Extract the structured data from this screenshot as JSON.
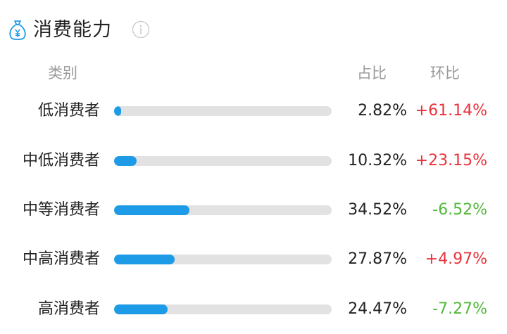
{
  "header": {
    "title": "消费能力",
    "icon": "money-bag-icon",
    "info_icon": "info-icon"
  },
  "columns": {
    "category": "类别",
    "share": "占比",
    "mom": "环比"
  },
  "colors": {
    "bar": "#1e9be6",
    "track": "#e2e2e2",
    "up": "#e8333d",
    "down": "#52b83a"
  },
  "rows": [
    {
      "label": "低消费者",
      "share": "2.82%",
      "share_value": 0.0282,
      "mom": "+61.14%",
      "trend": "up"
    },
    {
      "label": "中低消费者",
      "share": "10.32%",
      "share_value": 0.1032,
      "mom": "+23.15%",
      "trend": "up"
    },
    {
      "label": "中等消费者",
      "share": "34.52%",
      "share_value": 0.3452,
      "mom": "-6.52%",
      "trend": "down"
    },
    {
      "label": "中高消费者",
      "share": "27.87%",
      "share_value": 0.2787,
      "mom": "+4.97%",
      "trend": "up"
    },
    {
      "label": "高消费者",
      "share": "24.47%",
      "share_value": 0.2447,
      "mom": "-7.27%",
      "trend": "down"
    }
  ]
}
